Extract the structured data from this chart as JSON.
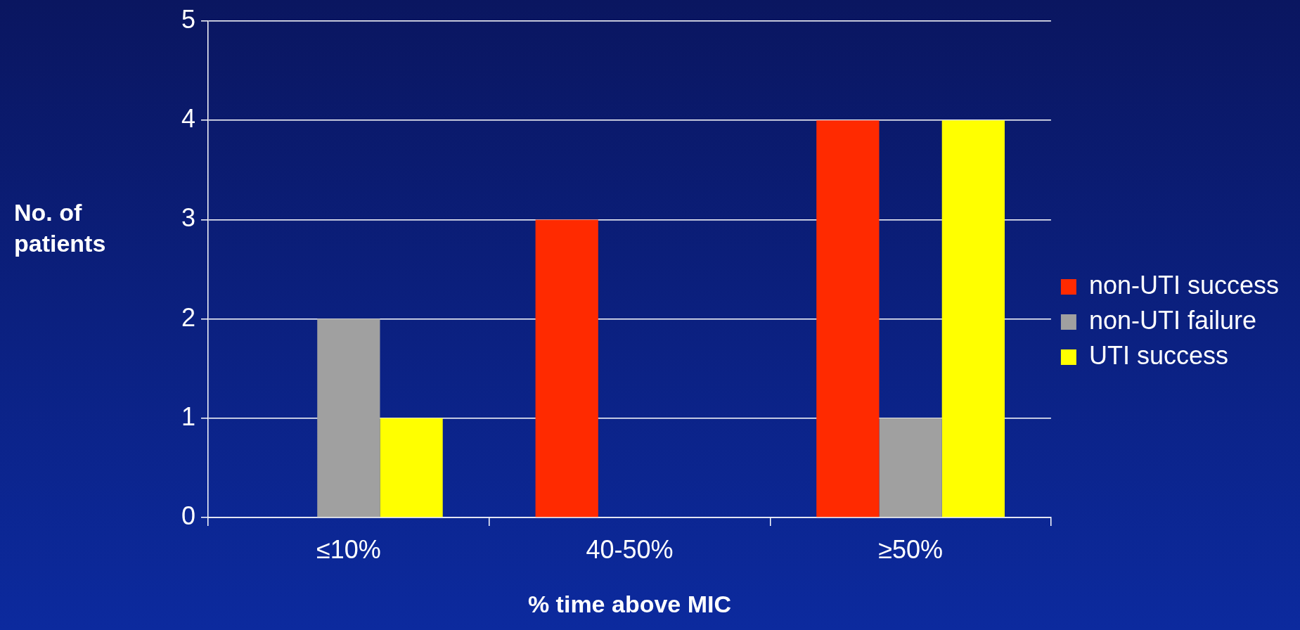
{
  "chart_data": {
    "type": "bar",
    "xlabel": "% time above MIC",
    "ylabel": "No. of patients",
    "categories": [
      "≤10%",
      "40-50%",
      "≥50%"
    ],
    "series": [
      {
        "name": "non-UTI success",
        "color": "#ff2a00",
        "values": [
          0,
          3,
          4
        ]
      },
      {
        "name": "non-UTI failure",
        "color": "#a0a0a0",
        "values": [
          2,
          0,
          1
        ]
      },
      {
        "name": "UTI success",
        "color": "#ffff00",
        "values": [
          1,
          0,
          4
        ]
      }
    ],
    "ylim": [
      0,
      5
    ],
    "yticks": [
      0,
      1,
      2,
      3,
      4,
      5
    ],
    "grid": "y",
    "legend": "right"
  }
}
